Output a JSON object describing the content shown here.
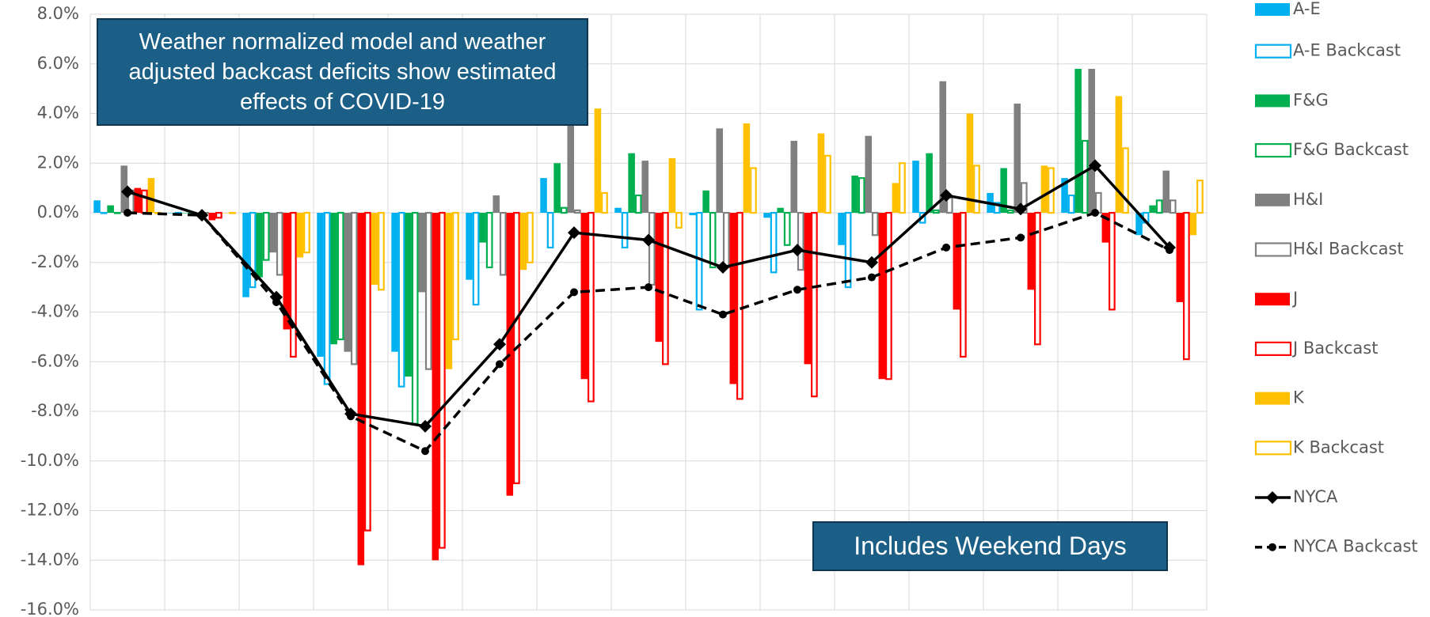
{
  "chart_data": {
    "type": "bar",
    "title": "Weather normalized model and weather adjusted backcast deficits show estimated effects of COVID-19",
    "annotations": [
      "Includes Weekend Days"
    ],
    "categories": [
      null,
      null,
      null,
      null,
      null,
      null,
      null,
      null,
      null,
      null,
      null,
      null,
      null,
      null,
      null
    ],
    "ylim": [
      -16,
      8
    ],
    "yticks": [
      {
        "value": -16,
        "label": "-16.0%"
      },
      {
        "value": -14,
        "label": "-14.0%"
      },
      {
        "value": -12,
        "label": "-12.0%"
      },
      {
        "value": -10,
        "label": "-10.0%"
      },
      {
        "value": -8,
        "label": "-8.0%"
      },
      {
        "value": -6,
        "label": "-6.0%"
      },
      {
        "value": -4,
        "label": "-4.0%"
      },
      {
        "value": -2,
        "label": "-2.0%"
      },
      {
        "value": 0,
        "label": "0.0%"
      },
      {
        "value": 2,
        "label": "2.0%"
      },
      {
        "value": 4,
        "label": "4.0%"
      },
      {
        "value": 6,
        "label": "6.0%"
      },
      {
        "value": 8,
        "label": "8.0%"
      }
    ],
    "grid": true,
    "series": [
      {
        "name": "A-E",
        "color": "#00b0f0",
        "style": "solid",
        "values": [
          0.5,
          0,
          -3.4,
          -5.8,
          -5.6,
          -2.7,
          1.4,
          0.2,
          -0.1,
          -0.2,
          -1.3,
          2.1,
          0.8,
          1.4,
          -0.9
        ]
      },
      {
        "name": "A-E Backcast",
        "color": "#00b0f0",
        "style": "outline",
        "values": [
          0,
          -0.05,
          -3.0,
          -6.9,
          -7.0,
          -3.7,
          -1.4,
          -1.4,
          -3.9,
          -2.4,
          -3.0,
          -0.4,
          0.4,
          0.7,
          -0.4
        ]
      },
      {
        "name": "F&G",
        "color": "#00b050",
        "style": "solid",
        "values": [
          0.3,
          0,
          -2.6,
          -5.3,
          -6.6,
          -1.2,
          2.0,
          2.4,
          0.9,
          0.2,
          1.5,
          2.4,
          1.8,
          5.8,
          0.3
        ]
      },
      {
        "name": "F&G Backcast",
        "color": "#00b050",
        "style": "outline",
        "values": [
          0,
          0,
          -1.9,
          -5.1,
          -8.5,
          -2.2,
          0.2,
          0.7,
          -2.2,
          -1.3,
          1.4,
          0.1,
          0.1,
          2.9,
          0.5
        ]
      },
      {
        "name": "H&I",
        "color": "#808080",
        "style": "solid",
        "values": [
          1.9,
          0,
          -1.6,
          -5.6,
          -3.2,
          0.7,
          3.8,
          2.1,
          3.4,
          2.9,
          3.1,
          5.3,
          4.4,
          5.8,
          1.7
        ]
      },
      {
        "name": "H&I Backcast",
        "color": "#808080",
        "style": "outline",
        "values": [
          0.9,
          0,
          -2.5,
          -6.1,
          -6.3,
          -2.5,
          0.1,
          -2.9,
          -2.2,
          -2.3,
          -0.9,
          0.6,
          1.2,
          0.8,
          0.5
        ]
      },
      {
        "name": "J",
        "color": "#ff0000",
        "style": "solid",
        "values": [
          1.0,
          -0.3,
          -4.7,
          -14.2,
          -14.0,
          -11.4,
          -6.7,
          -5.2,
          -6.9,
          -6.1,
          -6.7,
          -3.9,
          -3.1,
          -1.2,
          -3.6
        ]
      },
      {
        "name": "J Backcast",
        "color": "#ff0000",
        "style": "outline",
        "values": [
          0.9,
          -0.2,
          -5.8,
          -12.8,
          -13.5,
          -10.9,
          -7.6,
          -6.1,
          -7.5,
          -7.4,
          -6.7,
          -5.8,
          -5.3,
          -3.9,
          -5.9
        ]
      },
      {
        "name": "K",
        "color": "#ffc000",
        "style": "solid",
        "values": [
          1.4,
          0,
          -1.8,
          -2.9,
          -6.3,
          -2.3,
          4.2,
          2.2,
          3.6,
          3.2,
          1.2,
          4.0,
          1.9,
          4.7,
          -0.9
        ]
      },
      {
        "name": "K Backcast",
        "color": "#ffc000",
        "style": "outline",
        "values": [
          0,
          0,
          -1.6,
          -3.1,
          -5.1,
          -2.0,
          0.8,
          -0.6,
          1.8,
          2.3,
          2.0,
          1.9,
          1.8,
          2.6,
          1.3
        ]
      },
      {
        "name": "NYCA",
        "color": "#000000",
        "type": "line",
        "line_style": "solid",
        "marker": "diamond",
        "values": [
          0.85,
          -0.1,
          -3.4,
          -8.1,
          -8.6,
          -5.3,
          -0.8,
          -1.1,
          -2.2,
          -1.5,
          -2.0,
          0.7,
          0.15,
          1.9,
          -1.4
        ]
      },
      {
        "name": "NYCA Backcast",
        "color": "#000000",
        "type": "line",
        "line_style": "dashed",
        "marker": "circle",
        "values": [
          0,
          -0.1,
          -3.6,
          -8.2,
          -9.6,
          -6.1,
          -3.2,
          -3.0,
          -4.1,
          -3.1,
          -2.6,
          -1.4,
          -1.0,
          0,
          -1.5
        ]
      }
    ]
  }
}
